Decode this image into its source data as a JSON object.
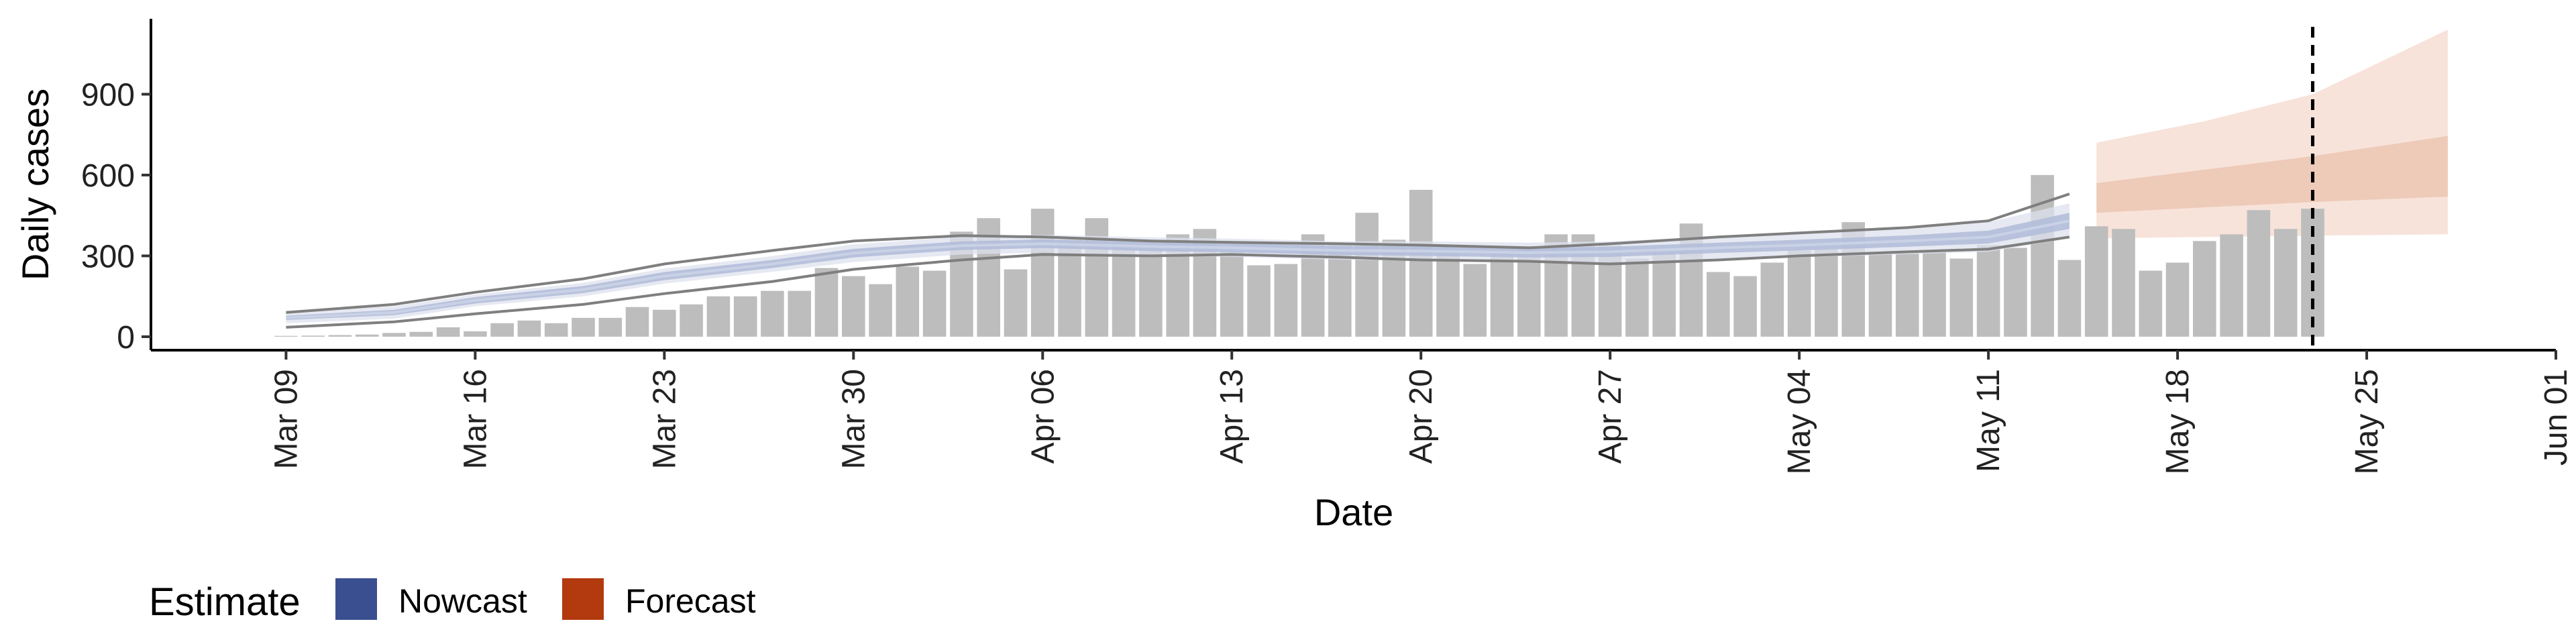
{
  "chart_data": {
    "type": "bar",
    "xlabel": "Date",
    "ylabel": "Daily cases",
    "ylim": [
      -50,
      1180
    ],
    "y_ticks": [
      0,
      300,
      600,
      900
    ],
    "x_range": [
      "2020-03-04",
      "2020-06-01"
    ],
    "x_ticks": [
      {
        "date": "2020-03-09",
        "label": "Mar 09"
      },
      {
        "date": "2020-03-16",
        "label": "Mar 16"
      },
      {
        "date": "2020-03-23",
        "label": "Mar 23"
      },
      {
        "date": "2020-03-30",
        "label": "Mar 30"
      },
      {
        "date": "2020-04-06",
        "label": "Apr 06"
      },
      {
        "date": "2020-04-13",
        "label": "Apr 13"
      },
      {
        "date": "2020-04-20",
        "label": "Apr 20"
      },
      {
        "date": "2020-04-27",
        "label": "Apr 27"
      },
      {
        "date": "2020-05-04",
        "label": "May 04"
      },
      {
        "date": "2020-05-11",
        "label": "May 11"
      },
      {
        "date": "2020-05-18",
        "label": "May 18"
      },
      {
        "date": "2020-05-25",
        "label": "May 25"
      },
      {
        "date": "2020-06-01",
        "label": "Jun 01"
      }
    ],
    "vline_date": "2020-05-23",
    "bars": {
      "start_date": "2020-03-09",
      "values": [
        3,
        4,
        6,
        8,
        14,
        18,
        35,
        20,
        50,
        60,
        50,
        70,
        70,
        110,
        100,
        120,
        150,
        150,
        170,
        170,
        255,
        225,
        195,
        260,
        245,
        390,
        440,
        250,
        475,
        360,
        440,
        350,
        340,
        380,
        400,
        320,
        265,
        270,
        380,
        340,
        460,
        360,
        545,
        310,
        270,
        310,
        330,
        380,
        380,
        340,
        290,
        310,
        420,
        240,
        225,
        275,
        320,
        325,
        425,
        310,
        310,
        320,
        290,
        340,
        330,
        600,
        285,
        410,
        400,
        245,
        275,
        355,
        380,
        470,
        400,
        475
      ]
    },
    "nowcast": {
      "start_date": "2020-03-09",
      "end_date": "2020-05-14",
      "median": [
        [
          0,
          70
        ],
        [
          4,
          90
        ],
        [
          7,
          135
        ],
        [
          11,
          175
        ],
        [
          14,
          225
        ],
        [
          18,
          270
        ],
        [
          21,
          310
        ],
        [
          25,
          338
        ],
        [
          28,
          345
        ],
        [
          32,
          335
        ],
        [
          35,
          330
        ],
        [
          39,
          320
        ],
        [
          42,
          318
        ],
        [
          46,
          312
        ],
        [
          49,
          315
        ],
        [
          53,
          330
        ],
        [
          56,
          340
        ],
        [
          60,
          355
        ],
        [
          63,
          370
        ],
        [
          66,
          430
        ]
      ],
      "inner_band": [
        [
          0,
          62,
          78
        ],
        [
          4,
          80,
          100
        ],
        [
          7,
          123,
          147
        ],
        [
          11,
          162,
          188
        ],
        [
          14,
          210,
          240
        ],
        [
          18,
          255,
          285
        ],
        [
          21,
          294,
          326
        ],
        [
          25,
          322,
          354
        ],
        [
          28,
          329,
          361
        ],
        [
          32,
          318,
          352
        ],
        [
          35,
          313,
          347
        ],
        [
          39,
          303,
          337
        ],
        [
          42,
          300,
          336
        ],
        [
          46,
          294,
          330
        ],
        [
          49,
          296,
          334
        ],
        [
          53,
          311,
          349
        ],
        [
          56,
          320,
          360
        ],
        [
          60,
          334,
          376
        ],
        [
          63,
          346,
          394
        ],
        [
          66,
          400,
          460
        ]
      ],
      "outer_band": [
        [
          0,
          50,
          90
        ],
        [
          4,
          67,
          113
        ],
        [
          7,
          113,
          157
        ],
        [
          11,
          150,
          200
        ],
        [
          14,
          197,
          253
        ],
        [
          18,
          241,
          299
        ],
        [
          21,
          277,
          343
        ],
        [
          25,
          305,
          371
        ],
        [
          28,
          312,
          378
        ],
        [
          32,
          301,
          369
        ],
        [
          35,
          296,
          364
        ],
        [
          39,
          286,
          354
        ],
        [
          42,
          282,
          354
        ],
        [
          46,
          275,
          349
        ],
        [
          49,
          276,
          354
        ],
        [
          53,
          289,
          371
        ],
        [
          56,
          295,
          385
        ],
        [
          60,
          306,
          404
        ],
        [
          63,
          315,
          425
        ],
        [
          66,
          365,
          495
        ]
      ],
      "lower_line": [
        [
          0,
          35
        ],
        [
          4,
          55
        ],
        [
          7,
          85
        ],
        [
          11,
          120
        ],
        [
          14,
          160
        ],
        [
          18,
          205
        ],
        [
          21,
          250
        ],
        [
          25,
          285
        ],
        [
          28,
          305
        ],
        [
          32,
          300
        ],
        [
          35,
          305
        ],
        [
          39,
          295
        ],
        [
          42,
          285
        ],
        [
          46,
          280
        ],
        [
          49,
          270
        ],
        [
          53,
          285
        ],
        [
          56,
          300
        ],
        [
          60,
          315
        ],
        [
          63,
          325
        ],
        [
          66,
          370
        ]
      ],
      "upper_line": [
        [
          0,
          90
        ],
        [
          4,
          120
        ],
        [
          7,
          165
        ],
        [
          11,
          215
        ],
        [
          14,
          270
        ],
        [
          18,
          320
        ],
        [
          21,
          355
        ],
        [
          25,
          375
        ],
        [
          28,
          370
        ],
        [
          32,
          355
        ],
        [
          35,
          350
        ],
        [
          39,
          345
        ],
        [
          42,
          340
        ],
        [
          46,
          330
        ],
        [
          49,
          345
        ],
        [
          53,
          370
        ],
        [
          56,
          385
        ],
        [
          60,
          405
        ],
        [
          63,
          430
        ],
        [
          66,
          530
        ]
      ]
    },
    "forecast": {
      "start_date": "2020-05-15",
      "end_date": "2020-05-28",
      "inner_band": [
        [
          0,
          460,
          570
        ],
        [
          4,
          480,
          620
        ],
        [
          8,
          500,
          670
        ],
        [
          13,
          520,
          745
        ]
      ],
      "outer_band": [
        [
          0,
          365,
          720
        ],
        [
          4,
          370,
          800
        ],
        [
          8,
          375,
          900
        ],
        [
          13,
          380,
          1140
        ]
      ]
    },
    "legend": {
      "title": "Estimate",
      "entries": [
        {
          "label": "Nowcast",
          "color": "#3A4F8F"
        },
        {
          "label": "Forecast",
          "color": "#B23A0E"
        }
      ]
    },
    "colors": {
      "bar": "#BDBDBD",
      "nowcast_outer": "#DDE2EE",
      "nowcast_inner": "#B3BED9",
      "nowcast_line": "#7F7F7F",
      "forecast_outer": "#F7E3DA",
      "forecast_inner": "#ECC6B3",
      "vline": "#000000"
    }
  }
}
